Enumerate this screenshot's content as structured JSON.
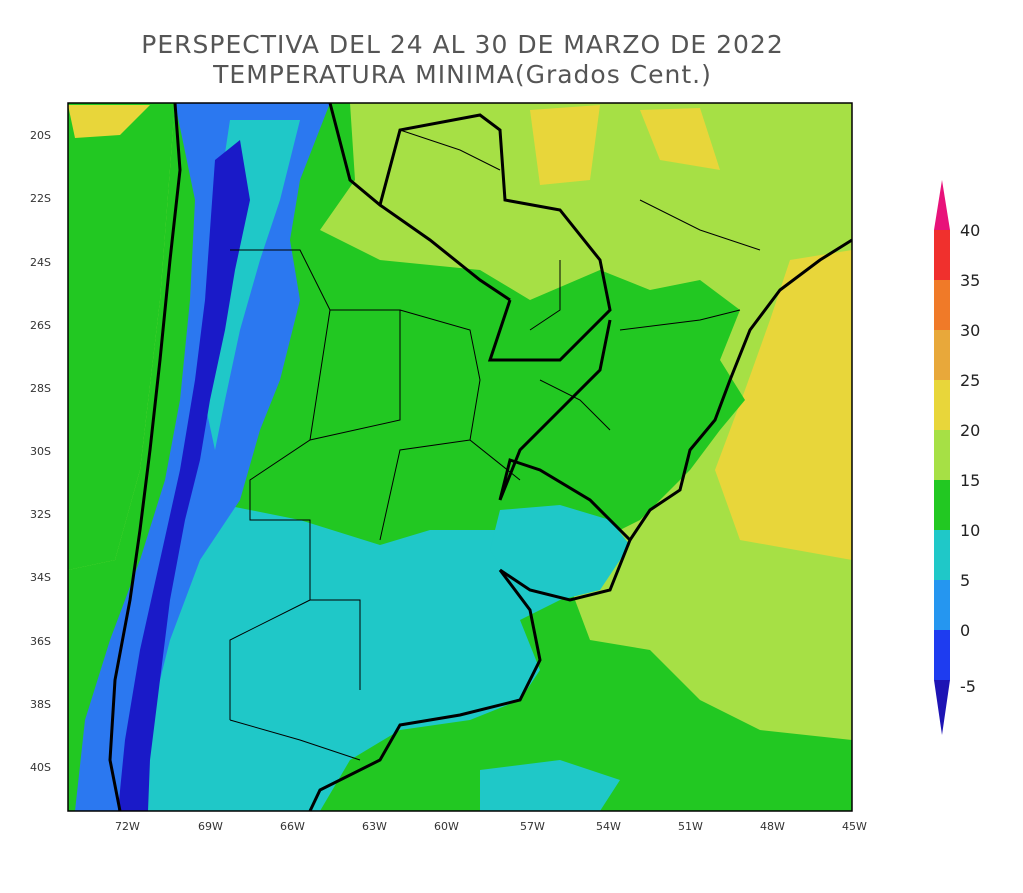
{
  "title_line1": "PERSPECTIVA DEL 24 AL 30 DE MARZO DE 2022",
  "title_line2": "TEMPERATURA MINIMA(Grados Cent.)",
  "lat_labels": [
    "20S",
    "22S",
    "24S",
    "26S",
    "28S",
    "30S",
    "32S",
    "34S",
    "36S",
    "38S",
    "40S"
  ],
  "lon_labels": [
    "72W",
    "69W",
    "66W",
    "63W",
    "60W",
    "57W",
    "54W",
    "51W",
    "48W",
    "45W"
  ],
  "colorbar": {
    "labels": [
      "40",
      "35",
      "30",
      "25",
      "20",
      "15",
      "10",
      "5",
      "0",
      "-5"
    ],
    "colors": [
      "#e8127a",
      "#f0302d",
      "#f07a28",
      "#e8a83a",
      "#e8d63a",
      "#a6e045",
      "#22c822",
      "#1fc8c8",
      "#2596f0",
      "#1e3cf0",
      "#1e14b4"
    ]
  },
  "zone_colors": {
    "very_cold": "#1a1ac8",
    "cold": "#2b78f0",
    "cool": "#1fc8c8",
    "mild": "#22c822",
    "warm": "#a6e045",
    "hot": "#e8d63a"
  }
}
